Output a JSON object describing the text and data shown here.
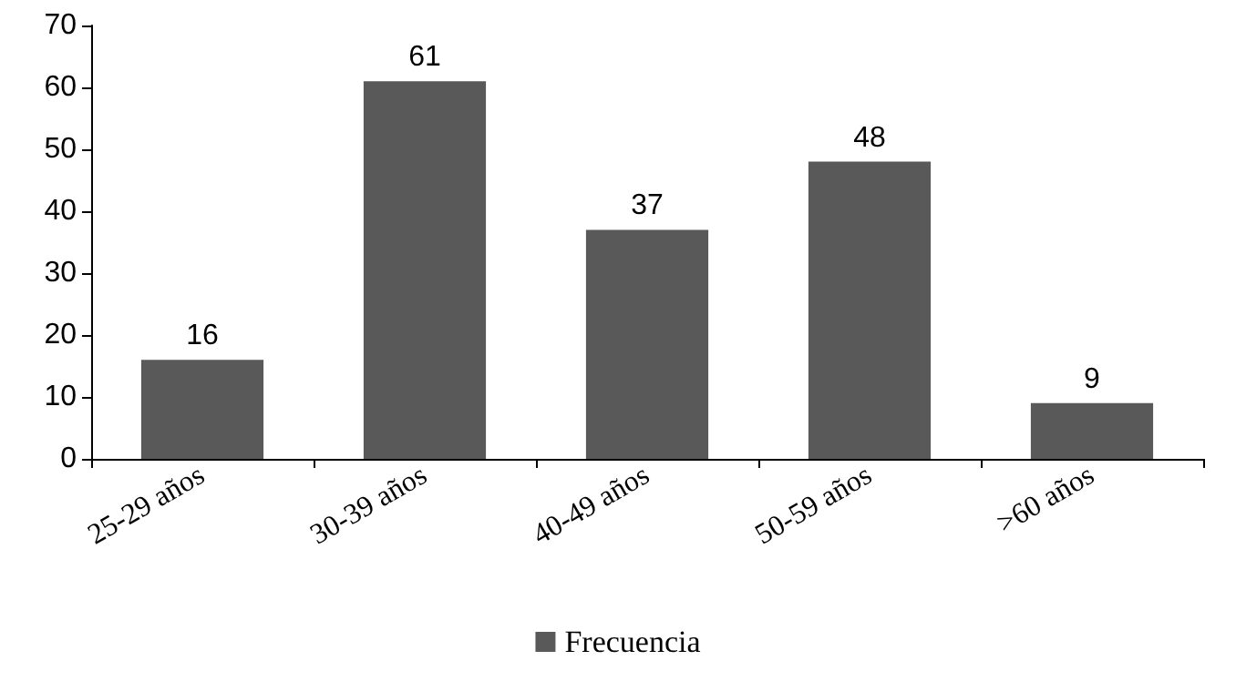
{
  "chart_data": {
    "type": "bar",
    "categories": [
      "25-29 años",
      "30-39 años",
      "40-49 años",
      "50-59 años",
      ">60 años"
    ],
    "series": [
      {
        "name": "Frecuencia",
        "color": "#595959",
        "values": [
          16,
          61,
          37,
          48,
          9
        ]
      }
    ],
    "ylim": [
      0,
      70
    ],
    "yticks": [
      0,
      10,
      20,
      30,
      40,
      50,
      60,
      70
    ],
    "grid": false,
    "legend": "bottom",
    "data_labels": true
  }
}
